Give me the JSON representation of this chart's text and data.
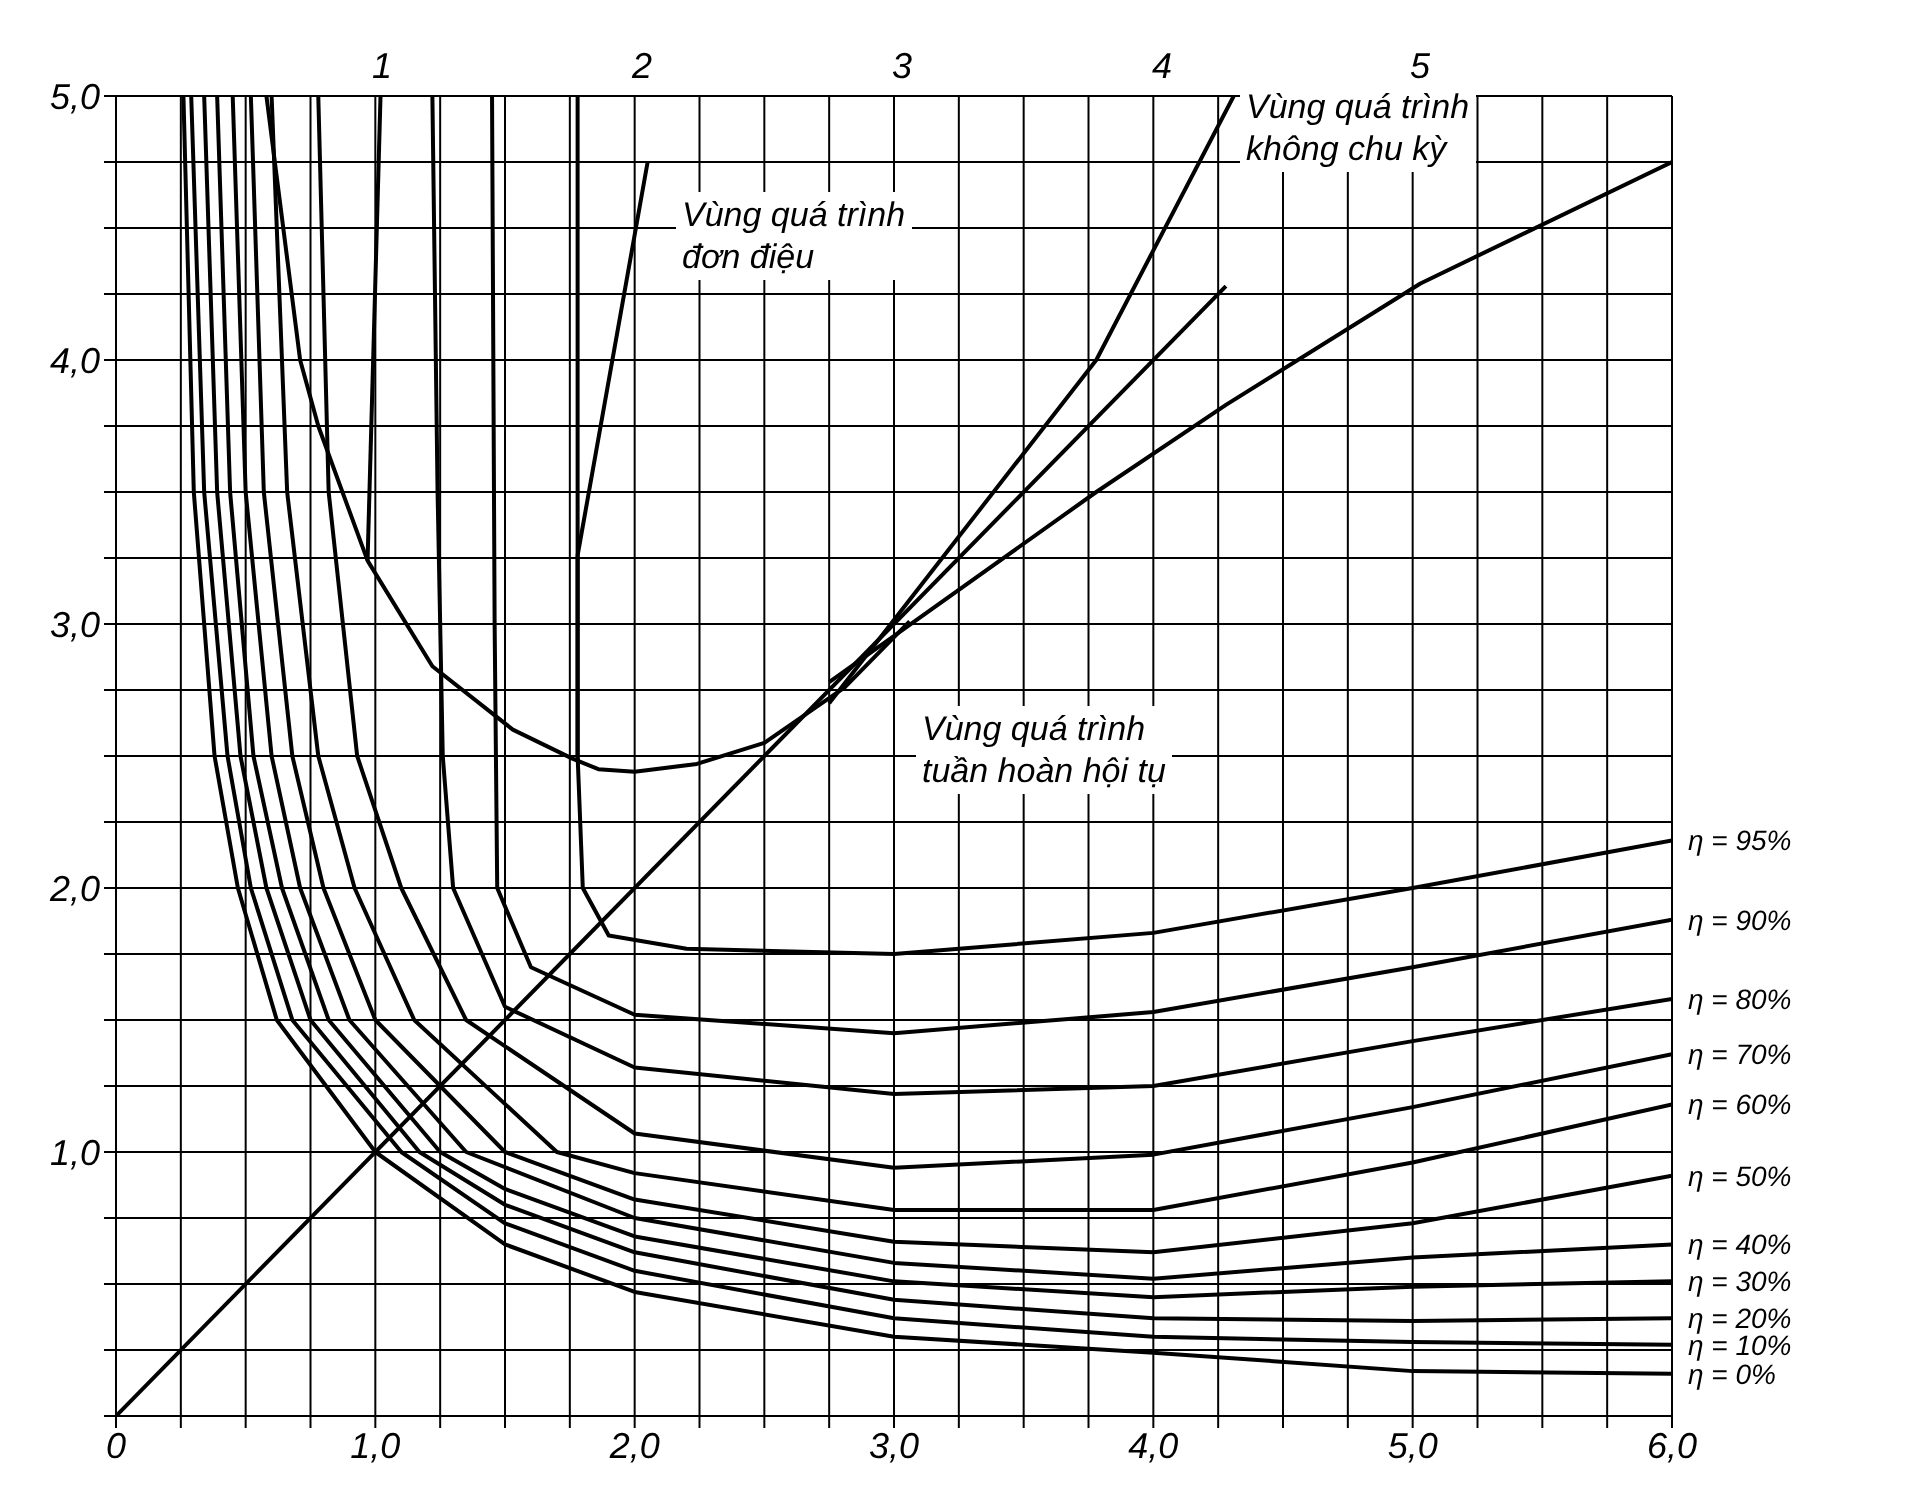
{
  "chart_data": {
    "type": "line",
    "xlim": [
      0,
      6
    ],
    "ylim": [
      0,
      5
    ],
    "xticks": [
      {
        "value": 0,
        "label": "0"
      },
      {
        "value": 0.25,
        "label": null
      },
      {
        "value": 0.5,
        "label": null
      },
      {
        "value": 0.75,
        "label": null
      },
      {
        "value": 1,
        "label": "1,0"
      },
      {
        "value": 1.25,
        "label": null
      },
      {
        "value": 1.5,
        "label": null
      },
      {
        "value": 1.75,
        "label": null
      },
      {
        "value": 2,
        "label": "2,0"
      },
      {
        "value": 2.25,
        "label": null
      },
      {
        "value": 2.5,
        "label": null
      },
      {
        "value": 2.75,
        "label": null
      },
      {
        "value": 3,
        "label": "3,0"
      },
      {
        "value": 3.25,
        "label": null
      },
      {
        "value": 3.5,
        "label": null
      },
      {
        "value": 3.75,
        "label": null
      },
      {
        "value": 4,
        "label": "4,0"
      },
      {
        "value": 4.25,
        "label": null
      },
      {
        "value": 4.5,
        "label": null
      },
      {
        "value": 4.75,
        "label": null
      },
      {
        "value": 5,
        "label": "5,0"
      },
      {
        "value": 5.25,
        "label": null
      },
      {
        "value": 5.5,
        "label": null
      },
      {
        "value": 5.75,
        "label": null
      },
      {
        "value": 6,
        "label": "6,0"
      }
    ],
    "yticks": [
      {
        "value": 0,
        "label": null
      },
      {
        "value": 0.25,
        "label": null
      },
      {
        "value": 0.5,
        "label": null
      },
      {
        "value": 0.75,
        "label": null
      },
      {
        "value": 1,
        "label": "1,0"
      },
      {
        "value": 1.25,
        "label": null
      },
      {
        "value": 1.5,
        "label": null
      },
      {
        "value": 1.75,
        "label": null
      },
      {
        "value": 2,
        "label": "2,0"
      },
      {
        "value": 2.25,
        "label": null
      },
      {
        "value": 2.5,
        "label": null
      },
      {
        "value": 2.75,
        "label": null
      },
      {
        "value": 3,
        "label": "3,0"
      },
      {
        "value": 3.25,
        "label": null
      },
      {
        "value": 3.5,
        "label": null
      },
      {
        "value": 3.75,
        "label": null
      },
      {
        "value": 4,
        "label": "4,0"
      },
      {
        "value": 4.25,
        "label": null
      },
      {
        "value": 4.5,
        "label": null
      },
      {
        "value": 4.75,
        "label": null
      },
      {
        "value": 5,
        "label": "5,0"
      }
    ],
    "grid": true,
    "marker": "none",
    "line_style": "solid",
    "series": [
      {
        "name": "η = 95%",
        "color": "#000000",
        "x": [
          1.78,
          1.78,
          1.8,
          1.9,
          2.2,
          3,
          4,
          5,
          6
        ],
        "values": [
          5,
          2.5,
          2,
          1.82,
          1.77,
          1.75,
          1.83,
          2.0,
          2.18
        ]
      },
      {
        "name": "η = 90%",
        "color": "#000000",
        "x": [
          1.45,
          1.46,
          1.47,
          1.6,
          2,
          3,
          4,
          5,
          6
        ],
        "values": [
          5,
          3,
          2,
          1.7,
          1.52,
          1.45,
          1.53,
          1.7,
          1.88
        ]
      },
      {
        "name": "η = 80%",
        "color": "#000000",
        "x": [
          1.22,
          1.24,
          1.26,
          1.3,
          1.5,
          2,
          3,
          4,
          5,
          6
        ],
        "values": [
          5,
          3.5,
          2.5,
          2,
          1.55,
          1.32,
          1.22,
          1.25,
          1.42,
          1.58
        ]
      },
      {
        "name": "η = 70%",
        "color": "#000000",
        "x": [
          0.78,
          0.82,
          0.93,
          1.1,
          1.35,
          2,
          3,
          4,
          5,
          6
        ],
        "values": [
          5,
          3.5,
          2.5,
          2,
          1.5,
          1.07,
          0.94,
          0.99,
          1.17,
          1.37
        ]
      },
      {
        "name": "η = 60%",
        "color": "#000000",
        "x": [
          0.6,
          0.66,
          0.78,
          0.92,
          1.15,
          1.7,
          2,
          3,
          4,
          5,
          6
        ],
        "values": [
          5,
          3.5,
          2.5,
          2,
          1.5,
          1,
          0.92,
          0.78,
          0.78,
          0.96,
          1.18
        ]
      },
      {
        "name": "η = 50%",
        "color": "#000000",
        "x": [
          0.52,
          0.57,
          0.68,
          0.8,
          1,
          1.5,
          2,
          3,
          4,
          5,
          6
        ],
        "values": [
          5,
          3.5,
          2.5,
          2,
          1.5,
          1,
          0.82,
          0.66,
          0.62,
          0.73,
          0.91
        ]
      },
      {
        "name": "η = 40%",
        "color": "#000000",
        "x": [
          0.45,
          0.5,
          0.6,
          0.71,
          0.9,
          1.35,
          2,
          3,
          4,
          5,
          6
        ],
        "values": [
          5,
          3.5,
          2.5,
          2,
          1.5,
          1,
          0.75,
          0.58,
          0.52,
          0.6,
          0.65
        ]
      },
      {
        "name": "η = 30%",
        "color": "#000000",
        "x": [
          0.39,
          0.44,
          0.53,
          0.64,
          0.82,
          1.25,
          1.5,
          2,
          3,
          4,
          5,
          6
        ],
        "values": [
          5,
          3.5,
          2.5,
          2,
          1.5,
          1,
          0.86,
          0.68,
          0.51,
          0.45,
          0.49,
          0.51
        ]
      },
      {
        "name": "η = 20%",
        "color": "#000000",
        "x": [
          0.34,
          0.39,
          0.48,
          0.58,
          0.75,
          1.17,
          1.5,
          2,
          3,
          4,
          5,
          6
        ],
        "values": [
          5,
          3.5,
          2.5,
          2,
          1.5,
          1,
          0.8,
          0.62,
          0.44,
          0.37,
          0.36,
          0.37
        ]
      },
      {
        "name": "η = 10%",
        "color": "#000000",
        "x": [
          0.29,
          0.34,
          0.43,
          0.52,
          0.68,
          1.1,
          1.5,
          2,
          3,
          4,
          5,
          6
        ],
        "values": [
          5,
          3.5,
          2.5,
          2,
          1.5,
          1,
          0.73,
          0.55,
          0.37,
          0.3,
          0.28,
          0.27
        ]
      },
      {
        "name": "η = 0%",
        "color": "#000000",
        "x": [
          0.26,
          0.3,
          0.38,
          0.47,
          0.62,
          1,
          1.5,
          2,
          3,
          4,
          5,
          6
        ],
        "values": [
          5,
          3.5,
          2.5,
          2,
          1.5,
          1,
          0.65,
          0.47,
          0.3,
          0.24,
          0.17,
          0.16
        ]
      },
      {
        "color": "#000000",
        "x": [
          0.58,
          0.71,
          0.78,
          0.97,
          1.22,
          1.53,
          1.76,
          1.86,
          2,
          2.24,
          2.5,
          2.81,
          3.06
        ],
        "values": [
          5,
          4,
          3.75,
          3.24,
          2.84,
          2.6,
          2.49,
          2.45,
          2.44,
          2.47,
          2.55,
          2.76,
          3.01
        ]
      },
      {
        "color": "#000000",
        "x": [
          1.02,
          0.97
        ],
        "values": [
          5,
          3.24
        ]
      },
      {
        "color": "#000000",
        "x": [
          2.05,
          1.78,
          1.78
        ],
        "values": [
          4.75,
          3.26,
          2.48
        ]
      },
      {
        "color": "#000000",
        "x": [
          0,
          4.28
        ],
        "values": [
          0,
          4.28
        ]
      },
      {
        "color": "#000000",
        "x": [
          2.75,
          3.78,
          4.31
        ],
        "values": [
          2.7,
          4,
          5
        ]
      },
      {
        "color": "#000000",
        "x": [
          2.75,
          3.78,
          4.28,
          5.03,
          6
        ],
        "values": [
          2.78,
          3.5,
          3.83,
          4.29,
          4.75
        ]
      }
    ],
    "annotations": [
      "Vùng quá trình\nđơn điệu",
      "Vùng quá trình\nkhông chu kỳ",
      "Vùng quá trình\ntuần hoàn hội tụ",
      "1",
      "2",
      "3",
      "4",
      "5"
    ]
  }
}
